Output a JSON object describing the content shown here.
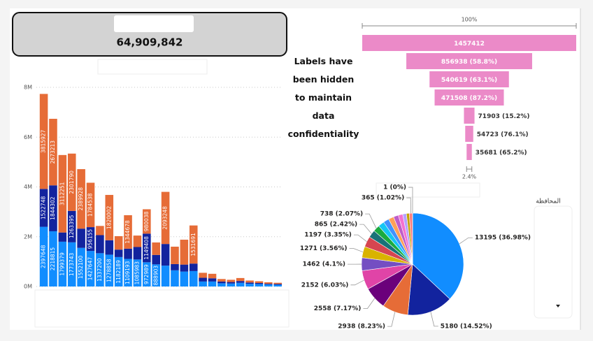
{
  "card": {
    "value": "64,909,842"
  },
  "text_box": {
    "text": "Labels have been hidden to maintain data confidentiality"
  },
  "slicer": {
    "title": "المحافظة"
  },
  "chart_data": [
    {
      "type": "stacked_bar",
      "categories": [
        null,
        null,
        null,
        null,
        null,
        null,
        null,
        null,
        null,
        null,
        null,
        null,
        null,
        null,
        null,
        null,
        null,
        null,
        null,
        null,
        null,
        null,
        null,
        null,
        null,
        null
      ],
      "series": [
        {
          "color": "#118DFF",
          "values": [
            2397648,
            2218815,
            1799379,
            1773743,
            1552100,
            1427647,
            1337200,
            1278858,
            1182189,
            1109193,
            1085983,
            972989,
            888903,
            837545,
            650000,
            600000,
            620000,
            200000,
            200000,
            130000,
            120000,
            150000,
            110000,
            100000,
            80000,
            70000
          ]
        },
        {
          "color": "#12239E",
          "values": [
            1522748,
            1844302,
            370000,
            1263395,
            772220,
            956155,
            725715,
            580000,
            300000,
            410000,
            500000,
            1149408,
            380000,
            870641,
            250000,
            280000,
            300000,
            150000,
            130000,
            70000,
            60000,
            70000,
            50000,
            40000,
            30000,
            30000
          ]
        },
        {
          "color": "#E66C37",
          "values": [
            3815927,
            2673213,
            3112251,
            2301790,
            2389928,
            1784538,
            370000,
            1820002,
            540000,
            1344678,
            460000,
            980038,
            500000,
            2093248,
            700000,
            1000000,
            1531691,
            200000,
            180000,
            100000,
            90000,
            120000,
            80000,
            70000,
            60000,
            50000
          ]
        }
      ],
      "ylim": [
        0,
        8000000
      ],
      "yticks": [
        {
          "value": 0,
          "label": "0M"
        },
        {
          "value": 2000000,
          "label": "2M"
        },
        {
          "value": 4000000,
          "label": "4M"
        },
        {
          "value": 6000000,
          "label": "6M"
        },
        {
          "value": 8000000,
          "label": "8M"
        }
      ],
      "grid": true
    },
    {
      "type": "funnel",
      "values": [
        1457412,
        856938,
        540619,
        471508,
        71903,
        54723,
        35681
      ],
      "value_labels": [
        "1457412",
        "856938 (58.8%)",
        "540619 (63.1%)",
        "471508 (87.2%)",
        "71903 (15.2%)",
        "54723 (76.1%)",
        "35681 (65.2%)"
      ],
      "color": "#EB8AC8",
      "top_label": "100%",
      "bottom_label": "2.4%"
    },
    {
      "type": "pie",
      "values": [
        13195,
        5180,
        2938,
        2558,
        2152,
        1462,
        1271,
        1197,
        865,
        738,
        700,
        650,
        600,
        560,
        500,
        420,
        329,
        365,
        1
      ],
      "value_labels": [
        "13195 (36.98%)",
        "5180 (14.52%)",
        "2938 (8.23%)",
        "2558 (7.17%)",
        "2152 (6.03%)",
        "1462 (4.1%)",
        "1271 (3.56%)",
        "1197 (3.35%)",
        "865 (2.42%)",
        "738 (2.07%)",
        null,
        null,
        null,
        null,
        null,
        null,
        null,
        "365 (1.02%)",
        "1 (0%)"
      ],
      "colors": [
        "#118DFF",
        "#12239E",
        "#E66C37",
        "#6B007B",
        "#E044A7",
        "#744EC2",
        "#D9B300",
        "#D64550",
        "#197278",
        "#1AAB40",
        "#15C6F4",
        "#4092FF",
        "#FFA058",
        "#BE5DC9",
        "#F472D0",
        "#B5A1FF",
        "#C4A200",
        "#FF8080",
        "#6FC3A1"
      ]
    }
  ]
}
